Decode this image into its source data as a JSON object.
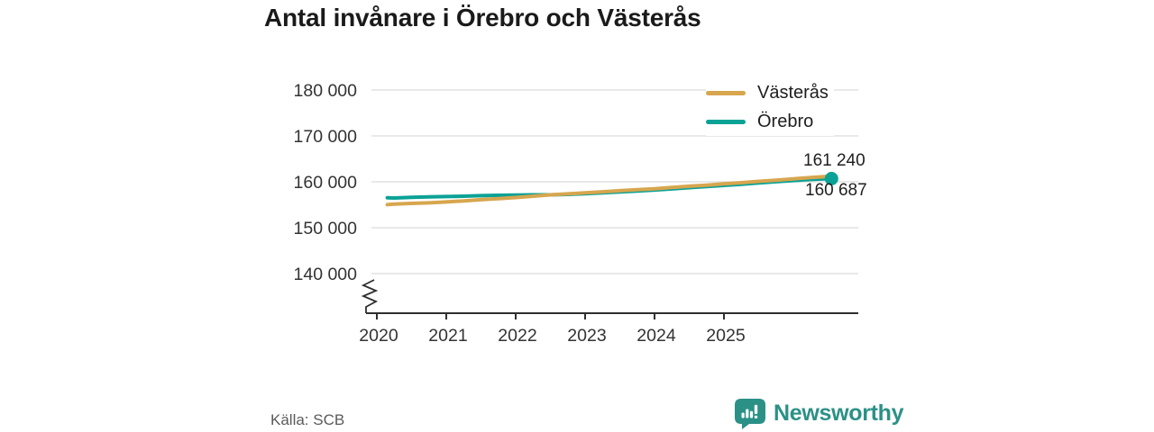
{
  "title": "Antal invånare i Örebro och Västerås",
  "source": "Källa: SCB",
  "branding": {
    "name": "Newsworthy",
    "color": "#2B9187",
    "icon": "bar-chart-speech-bubble-icon"
  },
  "legend": {
    "items": [
      {
        "label": "Västerås",
        "color": "#D7A64E"
      },
      {
        "label": "Örebro",
        "color": "#0BA296"
      }
    ]
  },
  "end_labels": [
    {
      "series": "Västerås",
      "text": "161 240",
      "value": 161240
    },
    {
      "series": "Örebro",
      "text": "160 687",
      "value": 160687
    }
  ],
  "chart_data": {
    "type": "line",
    "title": "Antal invånare i Örebro och Västerås",
    "xlabel": "",
    "ylabel": "",
    "grid": true,
    "legend_position": "top-right",
    "axis_break": true,
    "ylim_display": [
      140000,
      180000
    ],
    "xlim": [
      2019.9,
      2026.9
    ],
    "y_ticks": [
      {
        "value": 180000,
        "label": "180 000"
      },
      {
        "value": 170000,
        "label": "170 000"
      },
      {
        "value": 160000,
        "label": "160 000"
      },
      {
        "value": 150000,
        "label": "150 000"
      },
      {
        "value": 140000,
        "label": "140 000"
      }
    ],
    "x_ticks": [
      {
        "value": 2020,
        "label": "2020"
      },
      {
        "value": 2021,
        "label": "2021"
      },
      {
        "value": 2022,
        "label": "2022"
      },
      {
        "value": 2023,
        "label": "2023"
      },
      {
        "value": 2024,
        "label": "2024"
      },
      {
        "value": 2025,
        "label": "2025"
      }
    ],
    "x": [
      2020.15,
      2020.25,
      2020.5,
      2020.75,
      2021,
      2021.25,
      2021.5,
      2021.75,
      2022,
      2022.25,
      2022.5,
      2022.75,
      2023,
      2023.25,
      2023.5,
      2023.75,
      2024,
      2024.25,
      2024.5,
      2024.75,
      2025,
      2025.25,
      2025.5,
      2025.75,
      2026,
      2026.25,
      2026.55
    ],
    "series": [
      {
        "name": "Örebro",
        "color": "#0BA296",
        "marker_radius": 7.5,
        "values": [
          156530,
          156470,
          156620,
          156710,
          156780,
          156860,
          156980,
          157060,
          157120,
          157150,
          157160,
          157260,
          157400,
          157580,
          157800,
          158000,
          158220,
          158460,
          158720,
          158960,
          159220,
          159480,
          159760,
          160020,
          160280,
          160500,
          160687
        ],
        "final_value": 160687
      },
      {
        "name": "Västerås",
        "color": "#D7A64E",
        "marker_radius": 5,
        "values": [
          155020,
          155140,
          155290,
          155420,
          155610,
          155840,
          156090,
          156320,
          156560,
          156860,
          157160,
          157380,
          157590,
          157820,
          158060,
          158270,
          158500,
          158760,
          159030,
          159280,
          159540,
          159810,
          160090,
          160360,
          160640,
          160940,
          161240
        ],
        "final_value": 161240
      }
    ],
    "style": {
      "grid_color": "#DCDCDC",
      "axis_color": "#2F2F2F",
      "tick_label_color": "#333333",
      "line_width": 4
    }
  }
}
